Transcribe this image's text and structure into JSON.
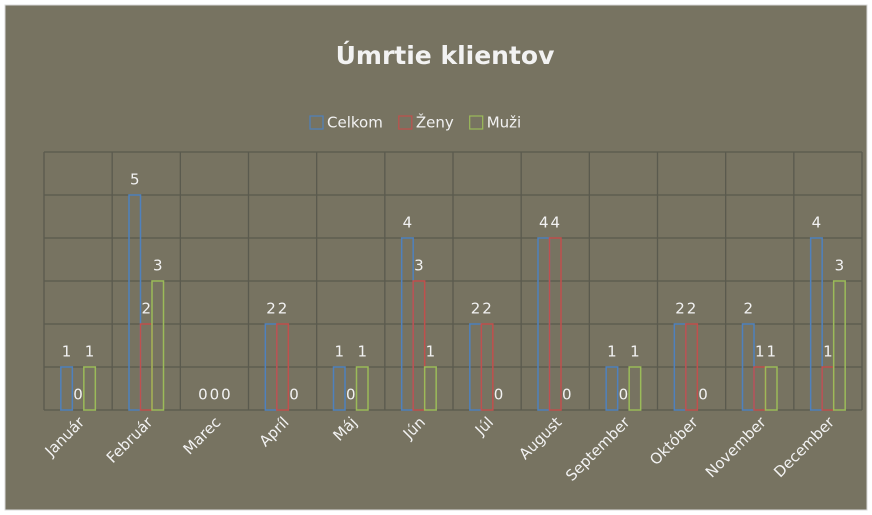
{
  "chart_data": {
    "type": "bar",
    "title": "Úmrtie klientov",
    "categories": [
      "Január",
      "Február",
      "Marec",
      "Apríl",
      "Máj",
      "Jún",
      "Júl",
      "August",
      "September",
      "Október",
      "November",
      "December"
    ],
    "series": [
      {
        "name": "Celkom",
        "color": "#4f81bd",
        "values": [
          1,
          5,
          0,
          2,
          1,
          4,
          2,
          4,
          1,
          2,
          2,
          4
        ]
      },
      {
        "name": "Ženy",
        "color": "#c0504d",
        "values": [
          0,
          2,
          0,
          2,
          0,
          3,
          2,
          4,
          0,
          2,
          1,
          1
        ]
      },
      {
        "name": "Muži",
        "color": "#9bbb59",
        "values": [
          1,
          3,
          0,
          0,
          1,
          1,
          0,
          0,
          1,
          0,
          1,
          3
        ]
      }
    ],
    "ylim": [
      0,
      6
    ],
    "yticks": [
      0,
      1,
      2,
      3,
      4,
      5,
      6
    ],
    "grid": true,
    "legend": "top"
  }
}
